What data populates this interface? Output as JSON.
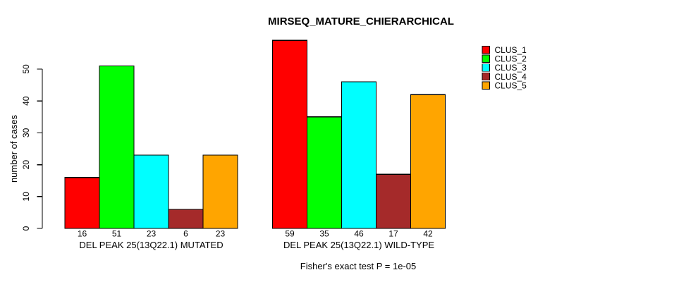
{
  "chart_data": {
    "type": "bar",
    "title": "MIRSEQ_MATURE_CHIERARCHICAL",
    "ylabel": "number of cases",
    "xlabel": "",
    "ylim": [
      0,
      50
    ],
    "yticks": [
      0,
      10,
      20,
      30,
      40,
      50
    ],
    "grid": false,
    "legend_position": "top-right",
    "categories": [
      "DEL PEAK 25(13Q22.1) MUTATED",
      "DEL PEAK 25(13Q22.1) WILD-TYPE"
    ],
    "series": [
      {
        "name": "CLUS_1",
        "color": "#ff0000",
        "values": [
          16,
          59
        ]
      },
      {
        "name": "CLUS_2",
        "color": "#00ff00",
        "values": [
          51,
          35
        ]
      },
      {
        "name": "CLUS_3",
        "color": "#00ffff",
        "values": [
          23,
          46
        ]
      },
      {
        "name": "CLUS_4",
        "color": "#a52a2a",
        "values": [
          6,
          17
        ]
      },
      {
        "name": "CLUS_5",
        "color": "#ffa500",
        "values": [
          23,
          42
        ]
      }
    ],
    "bar_border_color": "#000000",
    "footer": "Fisher's exact test P = 1e-05"
  }
}
